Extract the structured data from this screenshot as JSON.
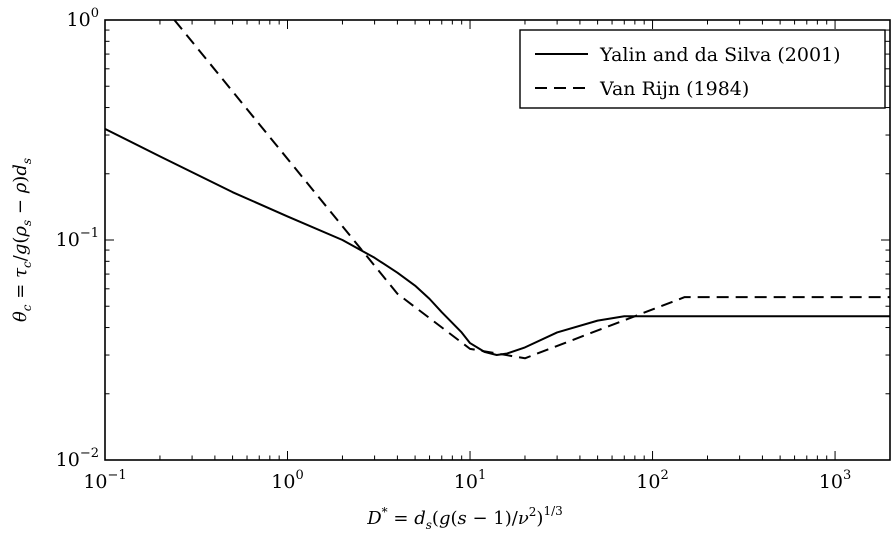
{
  "chart_data": {
    "type": "line",
    "xscale": "log",
    "yscale": "log",
    "xlim": [
      0.1,
      2000
    ],
    "ylim": [
      0.01,
      1
    ],
    "xlabel": "D* = d_s(g(s − 1)/ν²)^(1/3)",
    "ylabel": "θ_c = τ_c/g(ρ_s − ρ)d_s",
    "x_ticks": [
      {
        "value": 0.1,
        "base": "10",
        "exp": "−1"
      },
      {
        "value": 1,
        "base": "10",
        "exp": "0"
      },
      {
        "value": 10,
        "base": "10",
        "exp": "1"
      },
      {
        "value": 100,
        "base": "10",
        "exp": "2"
      },
      {
        "value": 1000,
        "base": "10",
        "exp": "3"
      }
    ],
    "y_ticks": [
      {
        "value": 0.01,
        "base": "10",
        "exp": "−2"
      },
      {
        "value": 0.1,
        "base": "10",
        "exp": "−1"
      },
      {
        "value": 1,
        "base": "10",
        "exp": "0"
      }
    ],
    "grid": false,
    "legend_position": "top-right",
    "series": [
      {
        "name": "Yalin and da Silva (2001)",
        "style": "solid",
        "color": "#000000",
        "x": [
          0.1,
          0.2,
          0.5,
          1,
          2,
          3,
          4,
          5,
          6,
          7,
          8,
          9,
          10,
          12,
          14,
          16,
          20,
          30,
          50,
          70,
          100,
          300,
          1000,
          2000
        ],
        "y": [
          0.32,
          0.24,
          0.165,
          0.128,
          0.1,
          0.083,
          0.071,
          0.062,
          0.054,
          0.047,
          0.042,
          0.038,
          0.034,
          0.031,
          0.03,
          0.0305,
          0.0325,
          0.038,
          0.043,
          0.045,
          0.045,
          0.045,
          0.045,
          0.045
        ]
      },
      {
        "name": "Van Rijn (1984)",
        "style": "dashed",
        "color": "#000000",
        "x": [
          0.24,
          4,
          10,
          20,
          150,
          2000
        ],
        "y": [
          1.0,
          0.057,
          0.032,
          0.029,
          0.055,
          0.055
        ]
      }
    ]
  }
}
